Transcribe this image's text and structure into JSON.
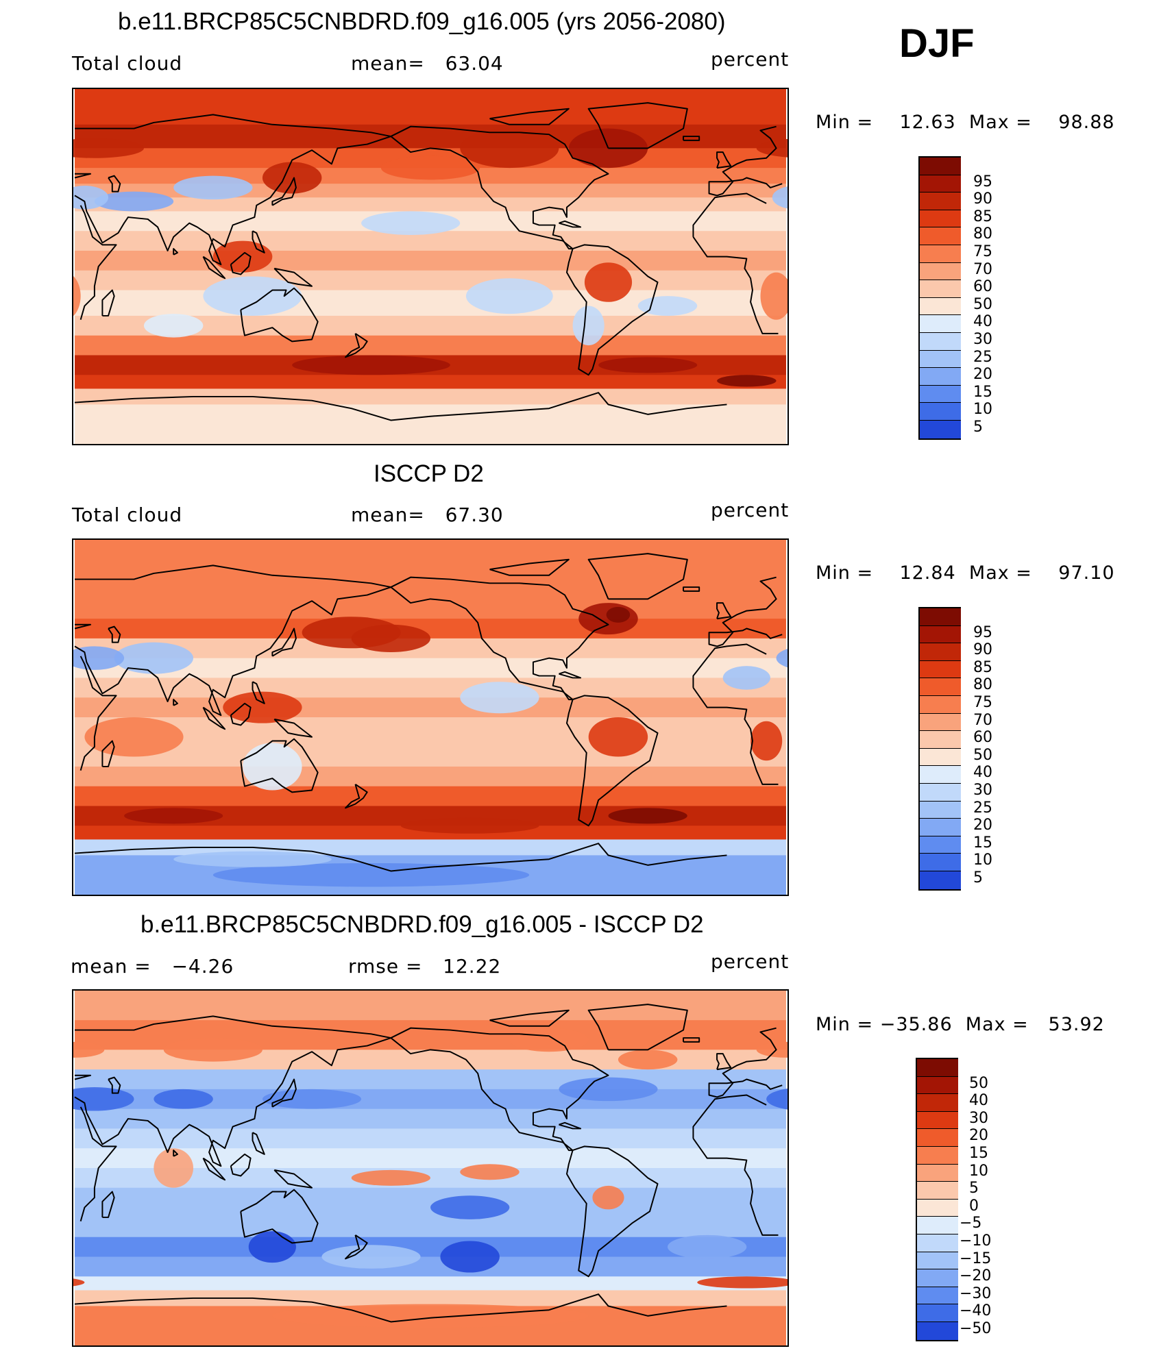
{
  "season": "DJF",
  "colors": {
    "warm": [
      "#fbe6d6",
      "#fbc8ac",
      "#f9a37c",
      "#f77e4f",
      "#ef5b2b",
      "#dd3a12",
      "#c12708",
      "#a31505",
      "#7d0c02"
    ],
    "cool": [
      "#deecfb",
      "#c1d9fa",
      "#a2c3f7",
      "#82a9f4",
      "#5f8cf0",
      "#3e6ce7",
      "#2248d9",
      "#0e2ab8",
      "#071590"
    ],
    "coast": "#000000"
  },
  "panels": [
    {
      "title": "b.e11.BRCP85C5CNBDRD.f09_g16.005 (yrs 2056-2080)",
      "left_label": "Total cloud",
      "center_label": "mean=   63.04",
      "units": "percent",
      "minmax": "Min =    12.63  Max =    98.88",
      "legend_levels": [
        "95",
        "90",
        "85",
        "80",
        "75",
        "70",
        "60",
        "50",
        "40",
        "30",
        "25",
        "20",
        "15",
        "10",
        "5"
      ],
      "mode": "model"
    },
    {
      "title": "ISCCP D2",
      "left_label": "Total cloud",
      "center_label": "mean=   67.30",
      "units": "percent",
      "minmax": "Min =    12.84  Max =    97.10",
      "legend_levels": [
        "95",
        "90",
        "85",
        "80",
        "75",
        "70",
        "60",
        "50",
        "40",
        "30",
        "25",
        "20",
        "15",
        "10",
        "5"
      ],
      "mode": "obs"
    },
    {
      "title": "b.e11.BRCP85C5CNBDRD.f09_g16.005 - ISCCP D2",
      "left_label": "mean =   −4.26",
      "center_label": "rmse =   12.22",
      "units": "percent",
      "minmax": "Min = −35.86  Max =   53.92",
      "legend_levels": [
        "50",
        "40",
        "30",
        "20",
        "15",
        "10",
        "5",
        "0",
        "−5",
        "−10",
        "−15",
        "−20",
        "−30",
        "−40",
        "−50"
      ],
      "mode": "diff"
    }
  ]
}
